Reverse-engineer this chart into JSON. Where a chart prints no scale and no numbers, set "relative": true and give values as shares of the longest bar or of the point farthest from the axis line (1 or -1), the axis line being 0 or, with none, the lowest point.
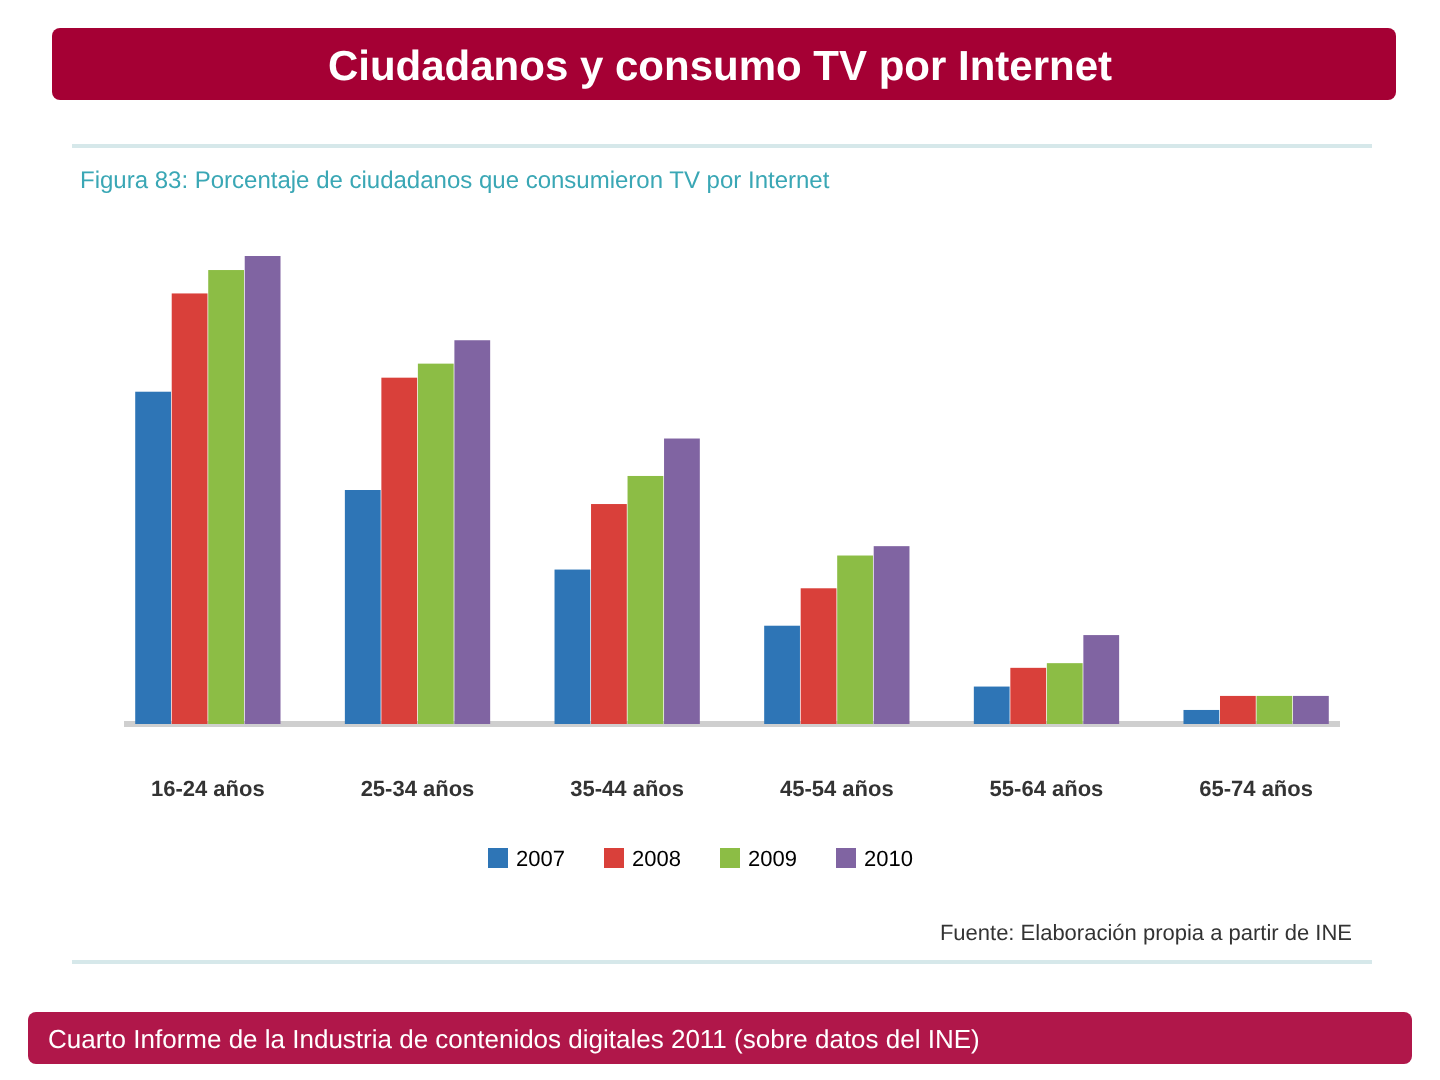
{
  "chart_data": {
    "type": "bar",
    "relative": true,
    "title": "Ciudadanos y consumo TV por Internet",
    "subtitle": "Figura 83: Porcentaje de ciudadanos que consumieron TV por Internet",
    "categories": [
      "16-24 años",
      "25-34 años",
      "35-44 años",
      "45-54 años",
      "55-64 años",
      "65-74 años"
    ],
    "series": [
      {
        "name": "2007",
        "color": "#2e75b6",
        "values": [
          0.71,
          0.5,
          0.33,
          0.21,
          0.08,
          0.03
        ]
      },
      {
        "name": "2008",
        "color": "#d9403a",
        "values": [
          0.92,
          0.74,
          0.47,
          0.29,
          0.12,
          0.06
        ]
      },
      {
        "name": "2009",
        "color": "#8cbd45",
        "values": [
          0.97,
          0.77,
          0.53,
          0.36,
          0.13,
          0.06
        ]
      },
      {
        "name": "2010",
        "color": "#8064a2",
        "values": [
          1,
          0.82,
          0.61,
          0.38,
          0.19,
          0.06
        ]
      }
    ],
    "legend": "bottom",
    "annotations": [
      "Fuente: Elaboración propia a partir de INE",
      "Cuarto Informe de la Industria de contenidos digitales 2011 (sobre datos del INE)"
    ]
  }
}
